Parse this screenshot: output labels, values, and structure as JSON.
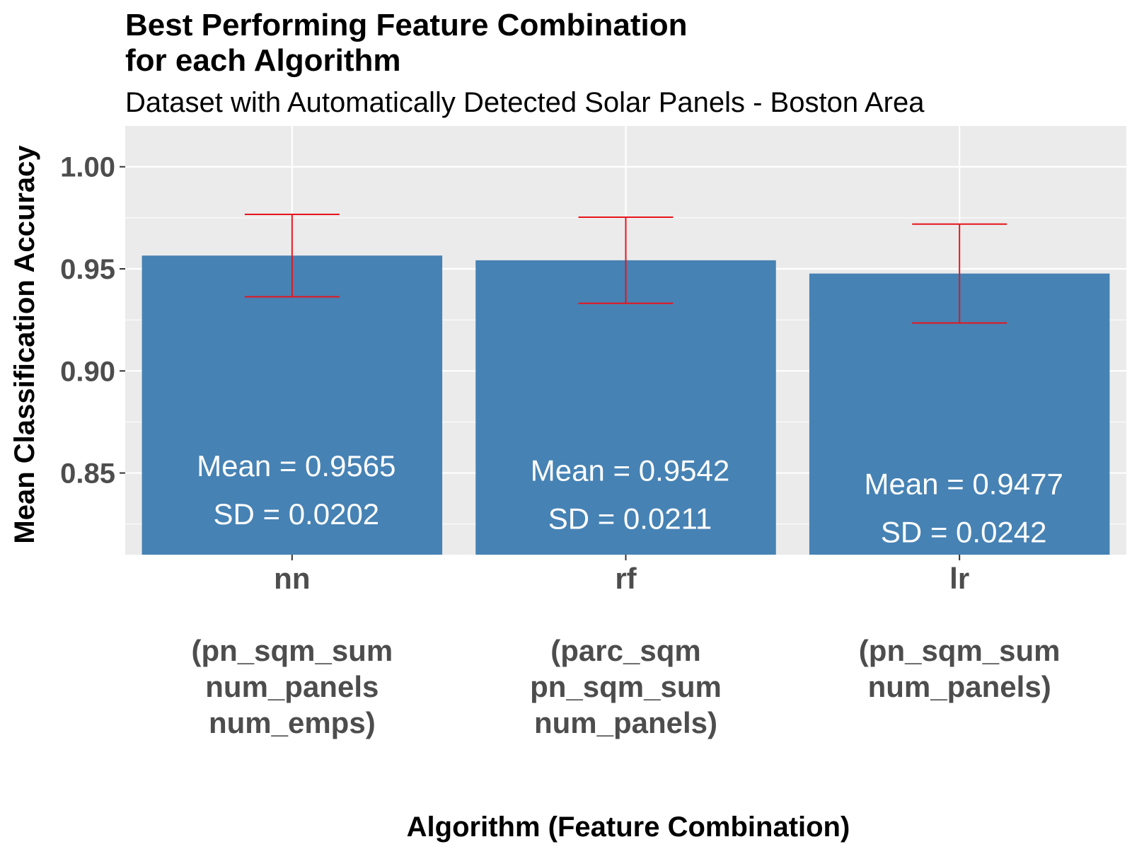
{
  "chart_data": {
    "type": "bar",
    "title_lines": [
      "Best Performing Feature Combination",
      "for each Algorithm"
    ],
    "subtitle": "Dataset with Automatically Detected Solar Panels - Boston Area",
    "xlabel": "Algorithm (Feature Combination)",
    "ylabel": "Mean Classification Accuracy",
    "ylim": [
      0.81,
      1.02
    ],
    "yticks": [
      0.85,
      0.9,
      0.95,
      1.0
    ],
    "ytick_labels": [
      "0.85",
      "0.90",
      "0.95",
      "1.00"
    ],
    "grid": true,
    "categories": [
      {
        "lines": [
          "nn",
          "",
          "(pn_sqm_sum",
          "num_panels",
          "num_emps)"
        ]
      },
      {
        "lines": [
          "rf",
          "",
          "(parc_sqm",
          "pn_sqm_sum",
          "num_panels)"
        ]
      },
      {
        "lines": [
          "lr",
          "",
          "(pn_sqm_sum",
          "num_panels)"
        ]
      }
    ],
    "values": [
      0.9565,
      0.9542,
      0.9477
    ],
    "sd": [
      0.0202,
      0.0211,
      0.0242
    ],
    "bar_labels": [
      [
        "Mean = 0.9565",
        "SD = 0.0202"
      ],
      [
        "Mean = 0.9542",
        "SD = 0.0211"
      ],
      [
        "Mean = 0.9477",
        "SD = 0.0242"
      ]
    ],
    "colors": {
      "bar": "#4682b4",
      "error_bar": "#e8141c",
      "panel": "#ebebeb",
      "grid": "#ffffff"
    }
  }
}
